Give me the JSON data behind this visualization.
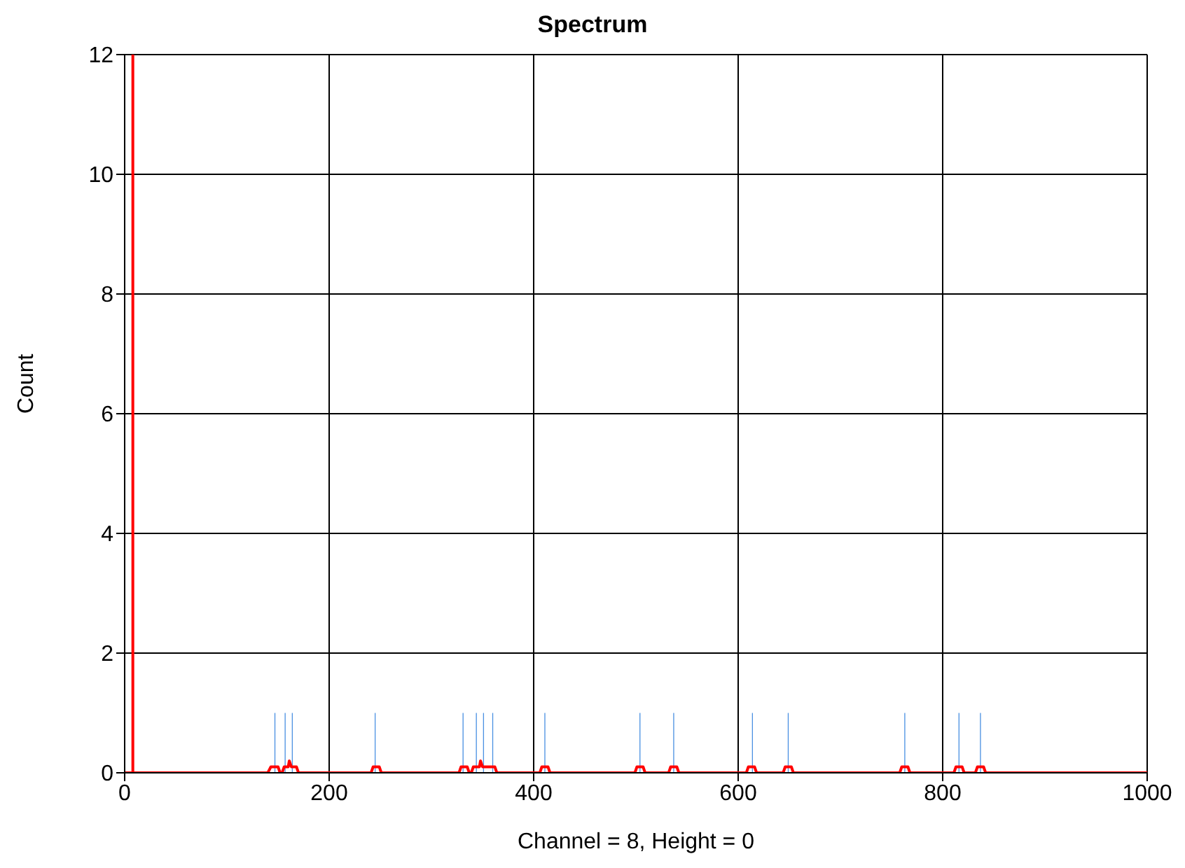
{
  "chart_data": {
    "type": "line",
    "title": "Spectrum",
    "xlabel": "Channel = 8, Height = 0",
    "ylabel": "Count",
    "xlim": [
      0,
      1000
    ],
    "xticks": [
      0,
      200,
      400,
      600,
      800,
      1000
    ],
    "ylim": [
      0,
      12
    ],
    "yticks": [
      0,
      2,
      4,
      6,
      8,
      10,
      12
    ],
    "grid": true,
    "legend": false,
    "marker": "none",
    "line_style": "solid",
    "ref_lines": [
      {
        "axis": "x",
        "value": 8,
        "color": "#ff0000"
      }
    ],
    "series": [
      {
        "type": "bar",
        "color": "#4a90e2",
        "x": [
          147,
          157,
          164,
          245,
          331,
          344,
          351,
          360,
          411,
          504,
          537,
          614,
          649,
          763,
          816,
          837
        ],
        "values": [
          1,
          1,
          1,
          1,
          1,
          1,
          1,
          1,
          1,
          1,
          1,
          1,
          1,
          1,
          1,
          1
        ]
      },
      {
        "type": "line",
        "color": "#ff0000",
        "x": [
          0,
          140,
          143,
          150,
          152,
          154,
          156,
          160,
          161,
          163,
          168,
          170,
          241,
          243,
          249,
          251,
          327,
          329,
          335,
          337,
          339,
          341,
          347,
          348,
          350,
          362,
          364,
          406,
          408,
          414,
          416,
          499,
          501,
          507,
          509,
          532,
          534,
          540,
          542,
          608,
          610,
          616,
          618,
          644,
          646,
          652,
          654,
          758,
          760,
          766,
          768,
          811,
          813,
          819,
          821,
          832,
          834,
          840,
          842,
          1000
        ],
        "values": [
          0,
          0,
          0.1,
          0.1,
          0,
          0,
          0.1,
          0.1,
          0.2,
          0.1,
          0.1,
          0,
          0,
          0.1,
          0.1,
          0,
          0,
          0.1,
          0.1,
          0,
          0,
          0.1,
          0.1,
          0.2,
          0.1,
          0.1,
          0,
          0,
          0.1,
          0.1,
          0,
          0,
          0.1,
          0.1,
          0,
          0,
          0.1,
          0.1,
          0,
          0,
          0.1,
          0.1,
          0,
          0,
          0.1,
          0.1,
          0,
          0,
          0.1,
          0.1,
          0,
          0,
          0.1,
          0.1,
          0,
          0,
          0.1,
          0.1,
          0,
          0
        ]
      }
    ]
  }
}
